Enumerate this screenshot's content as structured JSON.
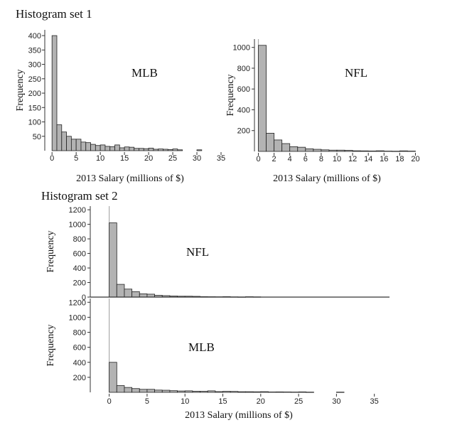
{
  "set1_title": "Histogram set 1",
  "set2_title": "Histogram set 2",
  "colors": {
    "bar_fill": "#b3b3b3",
    "bar_stroke": "#222222",
    "zero_line": "#aaaaaa",
    "axis": "#333333"
  },
  "chart_data": [
    {
      "id": "set1-mlb",
      "type": "bar",
      "label": "MLB",
      "xlabel": "2013 Salary (millions of $)",
      "ylabel": "Frequency",
      "bin_width": 1,
      "x_start": 0,
      "xlim": [
        -1.5,
        35
      ],
      "ylim": [
        0,
        420
      ],
      "xticks": [
        0,
        5,
        10,
        15,
        20,
        25,
        30,
        35
      ],
      "xtick_labels": [
        "0",
        "5",
        "10",
        "15",
        "20",
        "25",
        "30",
        "35"
      ],
      "yticks": [
        50,
        100,
        150,
        200,
        250,
        300,
        350,
        400
      ],
      "ytick_labels": [
        "50",
        "100",
        "150",
        "200",
        "250",
        "300",
        "350",
        "400"
      ],
      "values": [
        400,
        90,
        65,
        50,
        40,
        40,
        30,
        28,
        22,
        18,
        20,
        15,
        14,
        20,
        10,
        13,
        12,
        8,
        8,
        7,
        9,
        5,
        6,
        5,
        4,
        6,
        3,
        0,
        0,
        0,
        3
      ]
    },
    {
      "id": "set1-nfl",
      "type": "bar",
      "label": "NFL",
      "xlabel": "2013 Salary (millions of $)",
      "ylabel": "Frequency",
      "bin_width": 1,
      "x_start": 0,
      "xlim": [
        -0.5,
        20.5
      ],
      "ylim": [
        0,
        1080
      ],
      "xticks": [
        0,
        2,
        4,
        6,
        8,
        10,
        12,
        14,
        16,
        18,
        20
      ],
      "xtick_labels": [
        "0",
        "2",
        "4",
        "6",
        "8",
        "10",
        "12",
        "14",
        "16",
        "18",
        "20"
      ],
      "yticks": [
        200,
        400,
        600,
        800,
        1000
      ],
      "ytick_labels": [
        "200",
        "400",
        "600",
        "800",
        "1000"
      ],
      "values": [
        1020,
        175,
        110,
        75,
        45,
        40,
        25,
        20,
        15,
        12,
        12,
        10,
        6,
        5,
        4,
        6,
        3,
        2,
        5,
        3
      ]
    },
    {
      "id": "set2-nfl",
      "type": "bar",
      "label": "NFL",
      "ylabel": "Frequency",
      "bin_width": 1,
      "x_start": 0,
      "xlim": [
        -2.5,
        37
      ],
      "ylim": [
        0,
        1250
      ],
      "yticks": [
        0,
        200,
        400,
        600,
        800,
        1000,
        1200
      ],
      "ytick_labels": [
        "0",
        "200",
        "400",
        "600",
        "800",
        "1000",
        "1200"
      ],
      "values": [
        1020,
        175,
        110,
        75,
        45,
        40,
        25,
        20,
        15,
        12,
        12,
        10,
        6,
        5,
        4,
        6,
        3,
        2,
        5,
        3
      ]
    },
    {
      "id": "set2-mlb",
      "type": "bar",
      "label": "MLB",
      "xlabel": "2013 Salary (millions of $)",
      "ylabel": "Frequency",
      "bin_width": 1,
      "x_start": 0,
      "xlim": [
        -2.5,
        37
      ],
      "ylim": [
        0,
        1250
      ],
      "xticks": [
        0,
        5,
        10,
        15,
        20,
        25,
        30,
        35
      ],
      "xtick_labels": [
        "0",
        "5",
        "10",
        "15",
        "20",
        "25",
        "30",
        "35"
      ],
      "yticks": [
        200,
        400,
        600,
        800,
        1000,
        1200
      ],
      "ytick_labels": [
        "200",
        "400",
        "600",
        "800",
        "1000",
        "1200"
      ],
      "values": [
        400,
        90,
        65,
        50,
        40,
        40,
        30,
        28,
        22,
        18,
        20,
        15,
        14,
        20,
        10,
        13,
        12,
        8,
        8,
        7,
        9,
        5,
        6,
        5,
        4,
        6,
        3,
        0,
        0,
        0,
        3
      ]
    }
  ]
}
